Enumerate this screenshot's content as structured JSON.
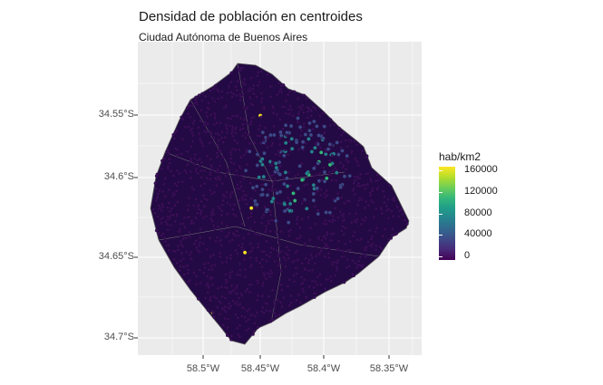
{
  "title": "Densidad de población en centroides",
  "subtitle": "Ciudad Autónoma de Buenos Aires",
  "axes": {
    "y_ticks": [
      "34.55°S",
      "34.6°S",
      "34.65°S",
      "34.7°S"
    ],
    "x_ticks": [
      "58.5°W",
      "58.45°W",
      "58.4°W",
      "58.35°W"
    ]
  },
  "legend": {
    "title": "hab/km2",
    "labels": [
      "160000",
      "120000",
      "80000",
      "40000",
      "0"
    ],
    "colors": [
      "#440154",
      "#3e4989",
      "#26828e",
      "#35b779",
      "#fde725"
    ]
  },
  "map": {
    "panel_background": "#ebebeb",
    "grid_color": "#ffffff",
    "dot_color": "#3b0f5a"
  }
}
